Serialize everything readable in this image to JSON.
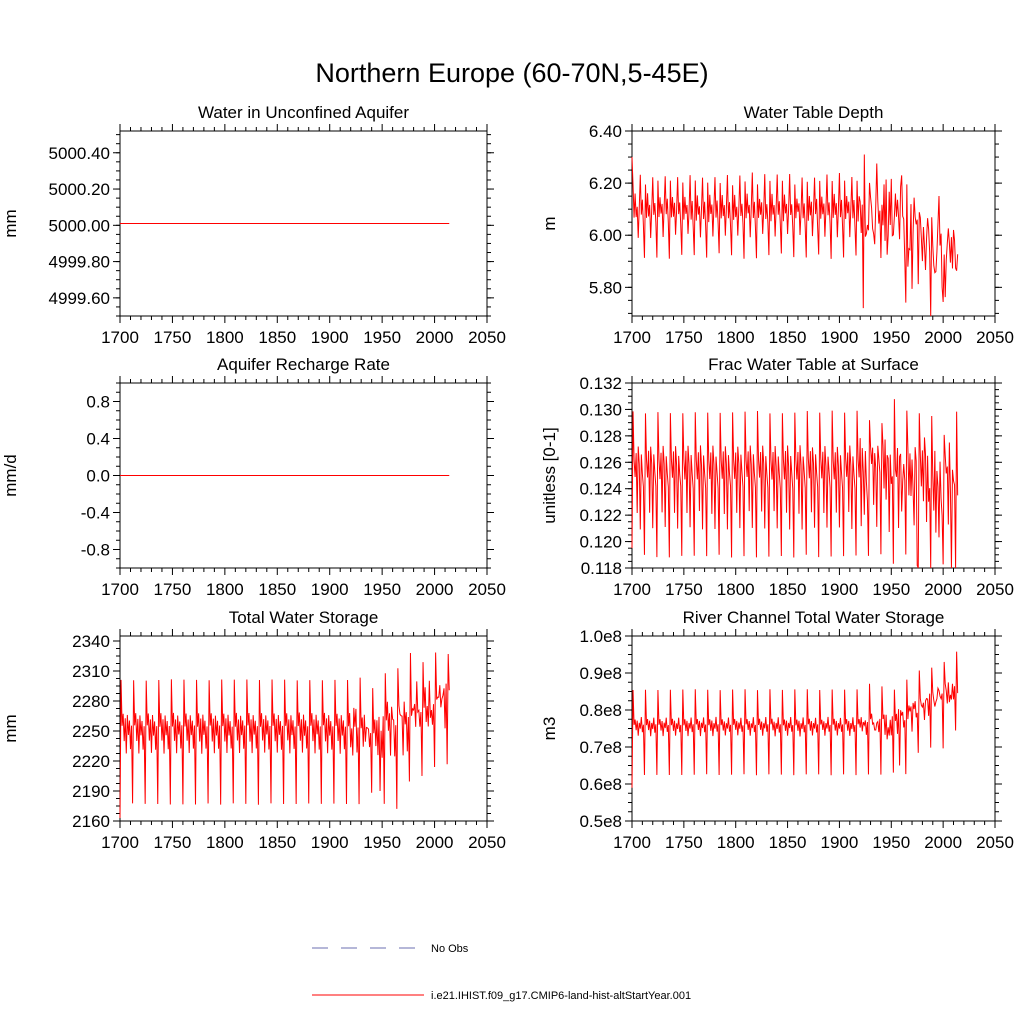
{
  "figure": {
    "title": "Northern Europe (60-70N,5-45E)"
  },
  "legend": {
    "entries": [
      {
        "label": "No Obs",
        "style": "dashed",
        "color": "#6b6fb0"
      },
      {
        "label": "i.e21.IHIST.f09_g17.CMIP6-land-hist-altStartYear.001",
        "style": "solid",
        "color": "#ff0000"
      }
    ]
  },
  "chart_data": [
    {
      "id": "p1",
      "type": "line",
      "title": "Water in Unconfined Aquifer",
      "ylabel": "mm",
      "xlim": [
        1700,
        2050
      ],
      "ylim": [
        4999.5,
        5000.52
      ],
      "xticks": [
        1700,
        1750,
        1800,
        1850,
        1900,
        1950,
        2000,
        2050
      ],
      "yticks": [
        4999.6,
        4999.8,
        5000.0,
        5000.2,
        5000.4
      ],
      "ytick_labels": [
        "4999.60",
        "4999.80",
        "5000.00",
        "5000.20",
        "5000.40"
      ],
      "series_color": "#ff0000",
      "pattern": {
        "kind": "flat",
        "value": 5000.01
      }
    },
    {
      "id": "p2",
      "type": "line",
      "title": "Water Table Depth",
      "ylabel": "m",
      "xlim": [
        1700,
        2050
      ],
      "ylim": [
        5.69,
        6.4
      ],
      "xticks": [
        1700,
        1750,
        1800,
        1850,
        1900,
        1950,
        2000,
        2050
      ],
      "yticks": [
        5.8,
        6.0,
        6.2,
        6.4
      ],
      "ytick_labels": [
        "5.80",
        "6.00",
        "6.20",
        "6.40"
      ],
      "series_color": "#ff0000",
      "pattern": {
        "kind": "cyclic",
        "start": 6.3,
        "cycle": [
          6.2,
          6.06,
          6.15,
          6.08,
          6.12,
          6.0,
          6.1,
          6.23,
          6.07,
          6.13,
          6.04,
          5.92
        ],
        "noise": [
          0.15,
          0.25,
          0.3
        ],
        "trend_late": -0.2,
        "dip": [
          1923,
          5.72
        ]
      }
    },
    {
      "id": "p3",
      "type": "line",
      "title": "Aquifer Recharge Rate",
      "ylabel": "mm/d",
      "xlim": [
        1700,
        2050
      ],
      "ylim": [
        -1.0,
        1.0
      ],
      "xticks": [
        1700,
        1750,
        1800,
        1850,
        1900,
        1950,
        2000,
        2050
      ],
      "yticks": [
        -0.8,
        -0.4,
        0.0,
        0.4,
        0.8
      ],
      "ytick_labels": [
        "-0.8",
        "-0.4",
        "0.0",
        "0.4",
        "0.8"
      ],
      "series_color": "#ff0000",
      "pattern": {
        "kind": "flat",
        "value": 0.0
      }
    },
    {
      "id": "p4",
      "type": "line",
      "title": "Frac Water Table at Surface",
      "ylabel": "unitless [0-1]",
      "xlim": [
        1700,
        2050
      ],
      "ylim": [
        0.118,
        0.132
      ],
      "xticks": [
        1700,
        1750,
        1800,
        1850,
        1900,
        1950,
        2000,
        2050
      ],
      "yticks": [
        0.118,
        0.12,
        0.122,
        0.124,
        0.126,
        0.128,
        0.13,
        0.132
      ],
      "ytick_labels": [
        "0.118",
        "0.120",
        "0.122",
        "0.124",
        "0.126",
        "0.128",
        "0.130",
        "0.132"
      ],
      "series_color": "#ff0000",
      "pattern": {
        "kind": "cyclic",
        "start": 0.1195,
        "cycle": [
          0.1298,
          0.1262,
          0.1248,
          0.1268,
          0.1222,
          0.1272,
          0.1258,
          0.121,
          0.1265,
          0.1252,
          0.1241,
          0.1189
        ],
        "noise": [
          0.0015,
          0.0025,
          0.0035
        ],
        "trend_late": -0.0015,
        "dip": [
          1975,
          0.1182
        ]
      }
    },
    {
      "id": "p5",
      "type": "line",
      "title": "Total Water Storage",
      "ylabel": "mm",
      "xlim": [
        1700,
        2050
      ],
      "ylim": [
        2160,
        2345
      ],
      "xticks": [
        1700,
        1750,
        1800,
        1850,
        1900,
        1950,
        2000,
        2050
      ],
      "yticks": [
        2160,
        2190,
        2220,
        2250,
        2280,
        2310,
        2340
      ],
      "ytick_labels": [
        "2160",
        "2190",
        "2220",
        "2250",
        "2280",
        "2310",
        "2340"
      ],
      "series_color": "#ff0000",
      "pattern": {
        "kind": "cyclic",
        "start": 2163,
        "cycle": [
          2301,
          2255,
          2268,
          2240,
          2262,
          2228,
          2266,
          2246,
          2260,
          2232,
          2255,
          2177
        ],
        "noise": [
          10,
          25,
          32
        ],
        "trend_late": 35,
        "dip": [
          1948,
          2190
        ]
      }
    },
    {
      "id": "p6",
      "type": "line",
      "title": "River Channel Total Water Storage",
      "ylabel": "m3",
      "xlim": [
        1700,
        2050
      ],
      "ylim": [
        50000000.0,
        100000000.0
      ],
      "xticks": [
        1700,
        1750,
        1800,
        1850,
        1900,
        1950,
        2000,
        2050
      ],
      "yticks": [
        50000000.0,
        60000000.0,
        70000000.0,
        80000000.0,
        90000000.0,
        100000000.0
      ],
      "ytick_labels": [
        "0.5e8",
        "0.6e8",
        "0.7e8",
        "0.8e8",
        "0.9e8",
        "1.0e8"
      ],
      "series_color": "#ff0000",
      "pattern": {
        "kind": "cyclic",
        "start": 59000000.0,
        "cycle": [
          85500000.0,
          76000000.0,
          77500000.0,
          74500000.0,
          77000000.0,
          73000000.0,
          76500000.0,
          75000000.0,
          78000000.0,
          74000000.0,
          76000000.0,
          62500000.0
        ],
        "noise": [
          2000000.0,
          4500000.0,
          5000000.0
        ],
        "trend_late": 11000000.0,
        "dip": [
          1958,
          65000000.0
        ]
      }
    }
  ]
}
